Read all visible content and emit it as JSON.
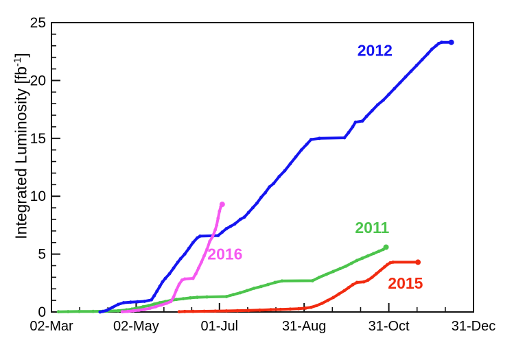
{
  "figure": {
    "background": "#ffffff",
    "frame_color": "#111111",
    "text_color": "#000000"
  },
  "chart_data": {
    "type": "line",
    "title": "",
    "xlabel": "",
    "ylabel": "Integrated Luminosity [fb^-1]",
    "ylabel_parts": {
      "prefix": "Integrated Luminosity [fb",
      "sup": "-1",
      "suffix": "]"
    },
    "legend_position": "inline-labels",
    "grid": false,
    "x_axis": {
      "tick_labels": [
        "02-Mar",
        "02-May",
        "01-Jul",
        "31-Aug",
        "31-Oct",
        "31-Dec"
      ],
      "tick_days": [
        0,
        61,
        121,
        182,
        243,
        304
      ],
      "range_days": [
        0,
        304
      ],
      "minor_divisions_per_interval": 3
    },
    "y_axis": {
      "ticks": [
        0,
        5,
        10,
        15,
        20,
        25
      ],
      "range": [
        0,
        25
      ],
      "minor_step": 1
    },
    "series": [
      {
        "name": "2011",
        "color": "#4cc44c",
        "final_value_fb": 5.6,
        "label": {
          "text": "2011",
          "day": 231,
          "value": 7.3
        },
        "points": [
          [
            5,
            0.02
          ],
          [
            12,
            0.03
          ],
          [
            20,
            0.04
          ],
          [
            30,
            0.05
          ],
          [
            40,
            0.07
          ],
          [
            48,
            0.1
          ],
          [
            54,
            0.18
          ],
          [
            58,
            0.25
          ],
          [
            62,
            0.35
          ],
          [
            66,
            0.45
          ],
          [
            70,
            0.55
          ],
          [
            74,
            0.68
          ],
          [
            78,
            0.8
          ],
          [
            82,
            0.9
          ],
          [
            86,
            1.0
          ],
          [
            90,
            1.08
          ],
          [
            95,
            1.15
          ],
          [
            100,
            1.22
          ],
          [
            105,
            1.27
          ],
          [
            112,
            1.3
          ],
          [
            126,
            1.33
          ],
          [
            131,
            1.5
          ],
          [
            136,
            1.66
          ],
          [
            141,
            1.85
          ],
          [
            146,
            2.05
          ],
          [
            151,
            2.2
          ],
          [
            156,
            2.37
          ],
          [
            161,
            2.55
          ],
          [
            166,
            2.68
          ],
          [
            188,
            2.7
          ],
          [
            193,
            3.0
          ],
          [
            198,
            3.25
          ],
          [
            203,
            3.5
          ],
          [
            208,
            3.75
          ],
          [
            212,
            3.95
          ],
          [
            216,
            4.2
          ],
          [
            220,
            4.45
          ],
          [
            224,
            4.65
          ],
          [
            228,
            4.85
          ],
          [
            232,
            5.05
          ],
          [
            236,
            5.25
          ],
          [
            239,
            5.4
          ],
          [
            241,
            5.6
          ]
        ]
      },
      {
        "name": "2012",
        "color": "#1515f0",
        "final_value_fb": 23.3,
        "label": {
          "text": "2012",
          "day": 233,
          "value": 22.6
        },
        "points": [
          [
            35,
            0
          ],
          [
            37,
            0.05
          ],
          [
            40,
            0.15
          ],
          [
            44,
            0.4
          ],
          [
            48,
            0.65
          ],
          [
            52,
            0.8
          ],
          [
            57,
            0.85
          ],
          [
            62,
            0.88
          ],
          [
            67,
            0.92
          ],
          [
            72,
            1.05
          ],
          [
            74,
            1.4
          ],
          [
            76,
            1.8
          ],
          [
            78,
            2.2
          ],
          [
            80,
            2.6
          ],
          [
            82,
            2.9
          ],
          [
            85,
            3.3
          ],
          [
            88,
            3.8
          ],
          [
            91,
            4.3
          ],
          [
            93,
            4.6
          ],
          [
            96,
            5.0
          ],
          [
            99,
            5.5
          ],
          [
            102,
            6.0
          ],
          [
            105,
            6.4
          ],
          [
            107,
            6.55
          ],
          [
            120,
            6.6
          ],
          [
            123,
            6.9
          ],
          [
            126,
            7.2
          ],
          [
            129,
            7.4
          ],
          [
            132,
            7.6
          ],
          [
            136,
            8.0
          ],
          [
            139,
            8.2
          ],
          [
            142,
            8.6
          ],
          [
            145,
            9.0
          ],
          [
            148,
            9.4
          ],
          [
            151,
            9.9
          ],
          [
            154,
            10.3
          ],
          [
            157,
            10.8
          ],
          [
            160,
            11.1
          ],
          [
            164,
            11.7
          ],
          [
            168,
            12.2
          ],
          [
            172,
            12.8
          ],
          [
            176,
            13.4
          ],
          [
            180,
            14.0
          ],
          [
            184,
            14.5
          ],
          [
            187,
            14.9
          ],
          [
            193,
            15.0
          ],
          [
            211,
            15.05
          ],
          [
            214,
            15.5
          ],
          [
            217,
            16.0
          ],
          [
            219,
            16.4
          ],
          [
            224,
            16.5
          ],
          [
            227,
            16.9
          ],
          [
            231,
            17.4
          ],
          [
            235,
            17.9
          ],
          [
            239,
            18.3
          ],
          [
            243,
            18.8
          ],
          [
            247,
            19.3
          ],
          [
            251,
            19.8
          ],
          [
            255,
            20.3
          ],
          [
            259,
            20.8
          ],
          [
            263,
            21.3
          ],
          [
            267,
            21.8
          ],
          [
            271,
            22.3
          ],
          [
            274,
            22.7
          ],
          [
            277,
            23.0
          ],
          [
            279,
            23.2
          ],
          [
            281,
            23.3
          ],
          [
            288,
            23.3
          ]
        ]
      },
      {
        "name": "2015",
        "color": "#f12b10",
        "final_value_fb": 4.3,
        "label": {
          "text": "2015",
          "day": 255,
          "value": 2.5
        },
        "points": [
          [
            92,
            0.02
          ],
          [
            96,
            0.04
          ],
          [
            102,
            0.05
          ],
          [
            110,
            0.06
          ],
          [
            118,
            0.07
          ],
          [
            126,
            0.09
          ],
          [
            134,
            0.11
          ],
          [
            142,
            0.13
          ],
          [
            150,
            0.16
          ],
          [
            158,
            0.2
          ],
          [
            165,
            0.22
          ],
          [
            172,
            0.25
          ],
          [
            178,
            0.28
          ],
          [
            183,
            0.33
          ],
          [
            187,
            0.4
          ],
          [
            191,
            0.55
          ],
          [
            195,
            0.75
          ],
          [
            199,
            1.0
          ],
          [
            203,
            1.25
          ],
          [
            207,
            1.55
          ],
          [
            211,
            1.85
          ],
          [
            214,
            2.1
          ],
          [
            217,
            2.35
          ],
          [
            220,
            2.55
          ],
          [
            225,
            2.6
          ],
          [
            228,
            2.75
          ],
          [
            231,
            3.0
          ],
          [
            234,
            3.3
          ],
          [
            237,
            3.6
          ],
          [
            240,
            3.9
          ],
          [
            242,
            4.1
          ],
          [
            244,
            4.25
          ],
          [
            246,
            4.3
          ],
          [
            264,
            4.3
          ]
        ]
      },
      {
        "name": "2016",
        "color": "#f558f0",
        "final_value_fb": 9.3,
        "label": {
          "text": "2016",
          "day": 125,
          "value": 5.0
        },
        "points": [
          [
            51,
            0.02
          ],
          [
            55,
            0.05
          ],
          [
            59,
            0.1
          ],
          [
            63,
            0.15
          ],
          [
            67,
            0.22
          ],
          [
            71,
            0.32
          ],
          [
            75,
            0.45
          ],
          [
            79,
            0.6
          ],
          [
            83,
            0.75
          ],
          [
            86,
            0.9
          ],
          [
            88,
            1.3
          ],
          [
            90,
            1.9
          ],
          [
            92,
            2.4
          ],
          [
            94,
            2.75
          ],
          [
            96,
            2.85
          ],
          [
            102,
            2.9
          ],
          [
            104,
            3.3
          ],
          [
            106,
            3.8
          ],
          [
            108,
            4.3
          ],
          [
            110,
            4.85
          ],
          [
            112,
            5.4
          ],
          [
            114,
            6.1
          ],
          [
            116,
            6.5
          ],
          [
            118,
            7.1
          ],
          [
            119,
            7.5
          ],
          [
            120,
            8.1
          ],
          [
            121,
            8.7
          ],
          [
            122,
            9.1
          ],
          [
            123,
            9.3
          ]
        ]
      }
    ]
  }
}
